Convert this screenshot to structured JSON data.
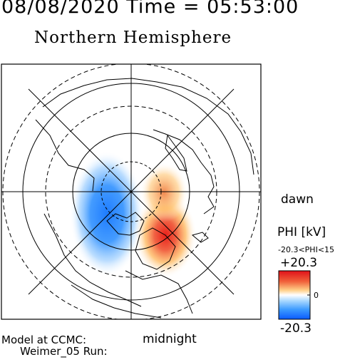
{
  "header": {
    "datetime": "08/08/2020 Time = 05:53:00",
    "hemisphere": "Northern Hemisphere"
  },
  "map": {
    "orientation_labels": {
      "dawn": "dawn",
      "midnight": "midnight"
    },
    "projection": "polar",
    "grid": "dashed latitude circles and radial meridians"
  },
  "colorbar": {
    "title": "PHI [kV]",
    "range_label": "-20.3<PHI<15",
    "max_label": "+20.3",
    "zero_label": "0",
    "min_label": "-20.3",
    "colors": [
      "#0a5aff",
      "#3c9bff",
      "#ffffff",
      "#ffb04a",
      "#e0101a"
    ]
  },
  "footer": {
    "model_line": "Model at CCMC:",
    "run_line": "Weimer_05 Run:"
  }
}
